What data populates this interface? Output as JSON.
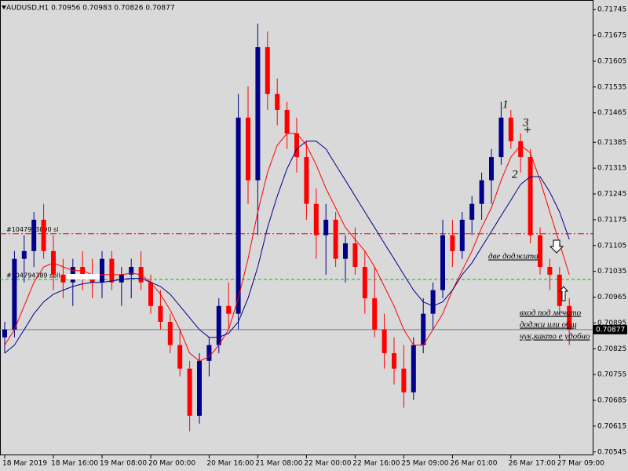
{
  "chart_data": {
    "type": "candlestick",
    "title": "AUDUSD,H1 0.70956 0.70983 0.70826 0.70877",
    "categories": [
      "18 Mar 2019",
      null,
      null,
      null,
      null,
      "18 Mar 16:00",
      null,
      null,
      null,
      null,
      "19 Mar 08:00",
      null,
      null,
      null,
      null,
      "20 Mar 00:00",
      null,
      null,
      null,
      null,
      null,
      "20 Mar 16:00",
      null,
      null,
      null,
      null,
      "21 Mar 08:00",
      null,
      null,
      null,
      null,
      "22 Mar 00:00",
      null,
      null,
      null,
      null,
      "22 Mar 16:00",
      null,
      null,
      null,
      null,
      "25 Mar 09:00",
      null,
      null,
      null,
      null,
      "26 Mar 01:00",
      null,
      null,
      null,
      null,
      null,
      "26 Mar 17:00",
      null,
      null,
      null,
      null,
      "27 Mar 09:00",
      null
    ],
    "open": [
      0.70856,
      0.70877,
      0.71069,
      0.7109,
      0.71175,
      0.7109,
      0.71026,
      0.71005,
      0.71047,
      0.71026,
      0.71005,
      0.71069,
      0.71005,
      0.71026,
      0.71047,
      0.71005,
      0.70941,
      0.70898,
      0.70835,
      0.70771,
      0.70643,
      0.70792,
      0.70835,
      0.70941,
      0.7092,
      0.71452,
      0.71282,
      0.71643,
      0.71516,
      0.71473,
      0.71409,
      0.71345,
      0.71218,
      0.71133,
      0.71175,
      0.71069,
      0.71111,
      0.71047,
      0.70962,
      0.70877,
      0.70813,
      0.70771,
      0.70707,
      0.70835,
      0.7092,
      0.70984,
      0.71133,
      0.7109,
      0.71175,
      0.71218,
      0.71282,
      0.71345,
      0.71452,
      0.71388,
      0.71345,
      0.71133,
      0.71047,
      0.71026,
      0.70941
    ],
    "high": [
      0.70898,
      0.7109,
      0.71133,
      0.71196,
      0.71218,
      0.71133,
      0.71069,
      0.71069,
      0.7109,
      0.71069,
      0.7109,
      0.7109,
      0.71047,
      0.71069,
      0.7109,
      0.71026,
      0.70984,
      0.7092,
      0.70877,
      0.70792,
      0.70813,
      0.70856,
      0.70962,
      0.71005,
      0.71516,
      0.71537,
      0.71707,
      0.71686,
      0.71558,
      0.71495,
      0.71452,
      0.71388,
      0.7126,
      0.71218,
      0.71196,
      0.71133,
      0.71154,
      0.7109,
      0.71047,
      0.7092,
      0.70856,
      0.70835,
      0.70856,
      0.70962,
      0.71005,
      0.71175,
      0.71175,
      0.71196,
      0.71239,
      0.71303,
      0.71367,
      0.71495,
      0.71473,
      0.71409,
      0.71367,
      0.71154,
      0.71069,
      0.71047,
      0.70962
    ],
    "low": [
      0.70813,
      0.70856,
      0.71005,
      0.71047,
      0.71069,
      0.70984,
      0.70962,
      0.70941,
      0.70984,
      0.70962,
      0.70962,
      0.70984,
      0.70941,
      0.70962,
      0.70984,
      0.7092,
      0.70877,
      0.70813,
      0.7075,
      0.70601,
      0.70622,
      0.7075,
      0.70813,
      0.70877,
      0.70877,
      0.71218,
      0.71133,
      0.71473,
      0.71431,
      0.71367,
      0.71303,
      0.71175,
      0.71069,
      0.71026,
      0.71047,
      0.71005,
      0.71026,
      0.7092,
      0.70856,
      0.70771,
      0.70728,
      0.70665,
      0.70686,
      0.70813,
      0.70877,
      0.70962,
      0.71047,
      0.71069,
      0.71133,
      0.71175,
      0.71218,
      0.71324,
      0.71367,
      0.71303,
      0.71111,
      0.71026,
      0.70984,
      0.7092,
      0.70835
    ],
    "close": [
      0.70877,
      0.71069,
      0.7109,
      0.71175,
      0.7109,
      0.71026,
      0.71005,
      0.71047,
      0.71026,
      0.71005,
      0.71069,
      0.71005,
      0.71026,
      0.71047,
      0.71005,
      0.70941,
      0.70898,
      0.70835,
      0.70771,
      0.70643,
      0.70792,
      0.70835,
      0.70941,
      0.7092,
      0.71452,
      0.71282,
      0.71643,
      0.71516,
      0.71473,
      0.71409,
      0.71345,
      0.71218,
      0.71133,
      0.71175,
      0.71069,
      0.71111,
      0.71047,
      0.70962,
      0.70877,
      0.70813,
      0.70771,
      0.70707,
      0.70835,
      0.7092,
      0.70984,
      0.71133,
      0.7109,
      0.71175,
      0.71218,
      0.71282,
      0.71345,
      0.71452,
      0.71388,
      0.71345,
      0.71133,
      0.71047,
      0.71026,
      0.70941,
      0.70877
    ],
    "up_color": "#00008b",
    "down_color": "#ff0000",
    "series": [
      {
        "color": "#ff0000",
        "values": [
          0.70835,
          0.70877,
          0.70941,
          0.71005,
          0.71047,
          0.71058,
          0.71047,
          0.71037,
          0.71037,
          0.71026,
          0.71026,
          0.71026,
          0.71026,
          0.7103,
          0.71026,
          0.71005,
          0.70973,
          0.7093,
          0.70877,
          0.70813,
          0.70792,
          0.70803,
          0.70835,
          0.70877,
          0.70962,
          0.71069,
          0.71196,
          0.71303,
          0.71377,
          0.71409,
          0.71409,
          0.71377,
          0.71324,
          0.7126,
          0.71207,
          0.71154,
          0.71122,
          0.7109,
          0.71047,
          0.70994,
          0.70941,
          0.70877,
          0.70835,
          0.70835,
          0.70877,
          0.7092,
          0.70984,
          0.71037,
          0.7109,
          0.71154,
          0.71207,
          0.71282,
          0.71345,
          0.71377,
          0.71356,
          0.71282,
          0.71196,
          0.71111,
          0.71026
        ]
      },
      {
        "color": "#00008b",
        "values": [
          0.70813,
          0.70835,
          0.70877,
          0.7092,
          0.70952,
          0.70973,
          0.70984,
          0.70994,
          0.71001,
          0.71005,
          0.71005,
          0.71009,
          0.71013,
          0.71016,
          0.71016,
          0.71005,
          0.70994,
          0.70973,
          0.70941,
          0.70909,
          0.70877,
          0.70856,
          0.70856,
          0.70867,
          0.70898,
          0.70962,
          0.71047,
          0.71154,
          0.71239,
          0.71313,
          0.71367,
          0.71388,
          0.71388,
          0.71367,
          0.71324,
          0.71282,
          0.71239,
          0.71196,
          0.71154,
          0.71111,
          0.71069,
          0.71026,
          0.70984,
          0.70952,
          0.70941,
          0.70952,
          0.70984,
          0.71026,
          0.71058,
          0.71101,
          0.71143,
          0.71186,
          0.71228,
          0.71271,
          0.71292,
          0.71292,
          0.7125,
          0.71196,
          0.71122
        ]
      }
    ],
    "levels": [
      {
        "label": "#1047943890 sl",
        "value": 0.71137,
        "color": "#ff0000"
      },
      {
        "label": "#104794389 sell",
        "value": 0.71013,
        "color": "#00c000"
      }
    ],
    "price": 0.70877,
    "ylim": [
      0.70536,
      0.71771
    ],
    "yticks": [
      0.71745,
      0.71675,
      0.71605,
      0.71535,
      0.71465,
      0.71385,
      0.71315,
      0.71245,
      0.71175,
      0.71105,
      0.71035,
      0.70965,
      0.70895,
      0.70825,
      0.70755,
      0.70685,
      0.70615,
      0.70545
    ],
    "annotations": [
      "1",
      "2",
      "3",
      "две доджита",
      "вход под мечото",
      "доджи или общ",
      "чук,както е удобно"
    ]
  }
}
